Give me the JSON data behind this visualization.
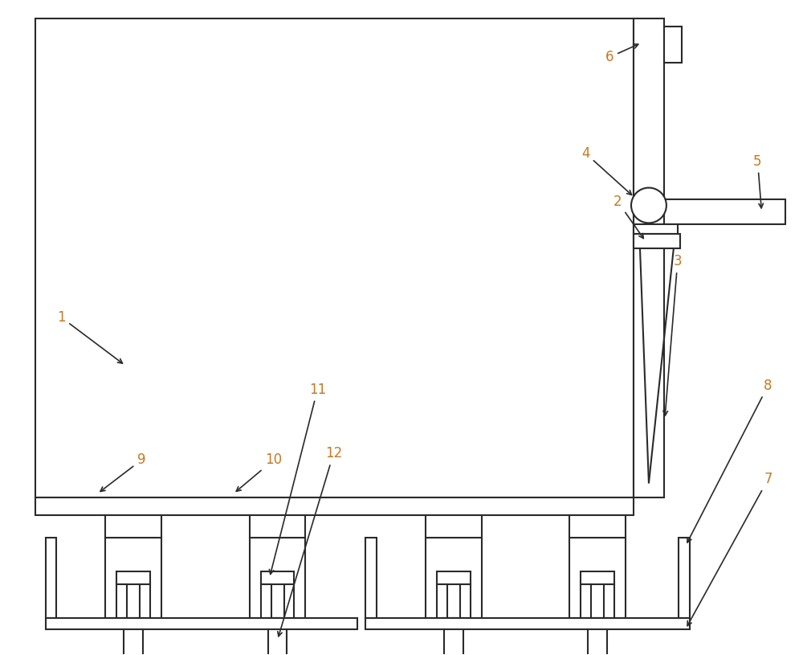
{
  "bg_color": "#ffffff",
  "line_color": "#2a2a2a",
  "label_color": "#c87820",
  "lw": 1.5,
  "fig_w": 10.0,
  "fig_h": 8.15,
  "dpi": 100
}
